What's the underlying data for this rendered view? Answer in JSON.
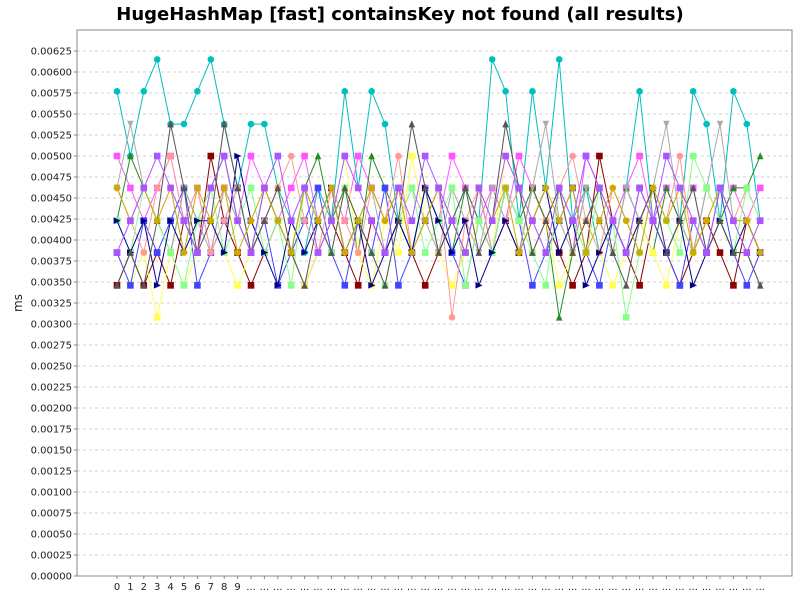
{
  "chart_data": {
    "type": "line",
    "title": "HugeHashMap [fast] containsKey not found (all results)",
    "ylabel": "ms",
    "xlabel": "",
    "ylim": [
      0,
      0.0065
    ],
    "grid": true,
    "legend": "none",
    "y_ticks": [
      "0.00000",
      "0.00025",
      "0.00050",
      "0.00075",
      "0.00100",
      "0.00125",
      "0.00150",
      "0.00175",
      "0.00200",
      "0.00225",
      "0.00250",
      "0.00275",
      "0.00300",
      "0.00325",
      "0.00350",
      "0.00375",
      "0.00400",
      "0.00425",
      "0.00450",
      "0.00475",
      "0.00500",
      "0.00525",
      "0.00550",
      "0.00575",
      "0.00600",
      "0.00625"
    ],
    "x_labels": [
      "0",
      "1",
      "2",
      "3",
      "4",
      "5",
      "6",
      "7",
      "8",
      "9",
      "...",
      "...",
      "...",
      "...",
      "...",
      "...",
      "...",
      "...",
      "...",
      "...",
      "...",
      "...",
      "...",
      "...",
      "...",
      "...",
      "...",
      "...",
      "...",
      "...",
      "...",
      "...",
      "...",
      "...",
      "...",
      "...",
      "...",
      "...",
      "...",
      "...",
      "...",
      "...",
      "...",
      "...",
      "...",
      "...",
      "...",
      "...",
      "..."
    ],
    "series": [
      {
        "color": "#00bfbf",
        "marker": "circle",
        "values": [
          0.00577,
          0.005,
          0.00577,
          0.00615,
          0.00538,
          0.00538,
          0.00577,
          0.00615,
          0.00538,
          0.00462,
          0.00538,
          0.00538,
          0.00462,
          0.00423,
          0.00385,
          0.00462,
          0.00423,
          0.00577,
          0.00462,
          0.00577,
          0.00538,
          0.00423,
          0.00385,
          0.00462,
          0.00385,
          0.00423,
          0.00462,
          0.00423,
          0.00615,
          0.00577,
          0.00423,
          0.00577,
          0.00462,
          0.00615,
          0.00423,
          0.00462,
          0.00385,
          0.00423,
          0.00462,
          0.00577,
          0.00423,
          0.00462,
          0.00423,
          0.00577,
          0.00538,
          0.00423,
          0.00577,
          0.00538,
          0.00423
        ]
      },
      {
        "color": "#ff55ff",
        "marker": "square",
        "values": [
          0.005,
          0.00462,
          0.00423,
          0.00462,
          0.005,
          0.00423,
          0.00462,
          0.00385,
          0.00462,
          0.00423,
          0.005,
          0.00462,
          0.00423,
          0.00462,
          0.005,
          0.00423,
          0.00462,
          0.00423,
          0.005,
          0.00462,
          0.00423,
          0.00462,
          0.00385,
          0.00462,
          0.00423,
          0.005,
          0.00462,
          0.00423,
          0.00462,
          0.00423,
          0.005,
          0.00462,
          0.00423,
          0.00462,
          0.00385,
          0.005,
          0.00462,
          0.00423,
          0.00462,
          0.005,
          0.00423,
          0.00462,
          0.00423,
          0.00462,
          0.00385,
          0.00423,
          0.00462,
          0.00423,
          0.00462
        ]
      },
      {
        "color": "#8b0000",
        "marker": "square",
        "values": [
          0.00346,
          0.00385,
          0.00346,
          0.00385,
          0.00346,
          0.00423,
          0.00385,
          0.005,
          0.00423,
          0.00385,
          0.00346,
          0.00385,
          0.00423,
          0.00385,
          0.00346,
          0.00385,
          0.00423,
          0.00385,
          0.00346,
          0.00423,
          0.00385,
          0.00423,
          0.00385,
          0.00346,
          0.00385,
          0.00423,
          0.00385,
          0.00462,
          0.00385,
          0.00423,
          0.00385,
          0.00462,
          0.00423,
          0.00385,
          0.00346,
          0.00385,
          0.005,
          0.00423,
          0.00385,
          0.00346,
          0.00423,
          0.00385,
          0.00346,
          0.00385,
          0.00423,
          0.00385,
          0.00346,
          0.00423,
          0.00385
        ]
      },
      {
        "color": "#228b22",
        "marker": "triangle-up",
        "values": [
          0.00423,
          0.005,
          0.00462,
          0.00423,
          0.00385,
          0.00462,
          0.00423,
          0.00462,
          0.005,
          0.00423,
          0.00385,
          0.00462,
          0.00423,
          0.00385,
          0.00462,
          0.005,
          0.00423,
          0.00462,
          0.00385,
          0.005,
          0.00462,
          0.00423,
          0.00385,
          0.00462,
          0.00423,
          0.00385,
          0.00462,
          0.00423,
          0.00385,
          0.00462,
          0.00423,
          0.00462,
          0.00423,
          0.00308,
          0.00385,
          0.00462,
          0.00423,
          0.00385,
          0.00462,
          0.00423,
          0.00385,
          0.00462,
          0.00423,
          0.00385,
          0.00462,
          0.00423,
          0.00462,
          0.00462,
          0.005
        ]
      },
      {
        "color": "#ffff55",
        "marker": "square",
        "values": [
          0.00385,
          0.00346,
          0.00385,
          0.00308,
          0.00385,
          0.00346,
          0.00385,
          0.00423,
          0.00385,
          0.00346,
          0.00385,
          0.00423,
          0.00462,
          0.00385,
          0.00346,
          0.00385,
          0.00423,
          0.005,
          0.00385,
          0.00346,
          0.00423,
          0.00385,
          0.005,
          0.00423,
          0.00385,
          0.00346,
          0.00385,
          0.00423,
          0.00385,
          0.005,
          0.00462,
          0.00385,
          0.00423,
          0.00346,
          0.00385,
          0.00423,
          0.00385,
          0.00346,
          0.00385,
          0.00423,
          0.00385,
          0.00346,
          0.00423,
          0.00385,
          0.00462,
          0.00423,
          0.00385,
          0.00423,
          0.00385
        ]
      },
      {
        "color": "#4444ff",
        "marker": "square",
        "values": [
          0.00385,
          0.00346,
          0.00423,
          0.00385,
          0.00423,
          0.00462,
          0.00346,
          0.00385,
          0.00423,
          0.00462,
          0.00385,
          0.00423,
          0.00346,
          0.00385,
          0.00423,
          0.00462,
          0.00385,
          0.00346,
          0.00423,
          0.00385,
          0.00462,
          0.00346,
          0.00385,
          0.00423,
          0.00462,
          0.00385,
          0.00346,
          0.00423,
          0.00385,
          0.00462,
          0.00423,
          0.00346,
          0.00385,
          0.00423,
          0.00462,
          0.00385,
          0.00346,
          0.00423,
          0.00385,
          0.00462,
          0.00423,
          0.00385,
          0.00346,
          0.00423,
          0.00385,
          0.00462,
          0.00385,
          0.00346,
          0.00385
        ]
      },
      {
        "color": "#aaaaaa",
        "marker": "triangle-down",
        "values": [
          0.00462,
          0.00538,
          0.00462,
          0.00423,
          0.00385,
          0.00462,
          0.00423,
          0.00385,
          0.00462,
          0.00423,
          0.00385,
          0.00462,
          0.00423,
          0.00385,
          0.00462,
          0.00423,
          0.00462,
          0.00385,
          0.00423,
          0.00462,
          0.00385,
          0.00423,
          0.00462,
          0.00423,
          0.00385,
          0.00462,
          0.00423,
          0.00385,
          0.00462,
          0.00423,
          0.00385,
          0.00462,
          0.00538,
          0.00423,
          0.00385,
          0.00462,
          0.00423,
          0.00385,
          0.00462,
          0.00423,
          0.00462,
          0.00538,
          0.00423,
          0.00385,
          0.00462,
          0.00538,
          0.00423,
          0.00385,
          0.00346
        ]
      },
      {
        "color": "#ff9999",
        "marker": "circle",
        "values": [
          0.00462,
          0.00423,
          0.00385,
          0.00462,
          0.005,
          0.00423,
          0.00462,
          0.00385,
          0.00423,
          0.00462,
          0.00385,
          0.00423,
          0.00462,
          0.005,
          0.00423,
          0.00385,
          0.00462,
          0.00423,
          0.00385,
          0.00462,
          0.00423,
          0.005,
          0.00385,
          0.00423,
          0.00462,
          0.00308,
          0.00423,
          0.00462,
          0.00385,
          0.00423,
          0.00462,
          0.00385,
          0.00423,
          0.00462,
          0.005,
          0.00423,
          0.00385,
          0.00462,
          0.00423,
          0.00385,
          0.00462,
          0.00423,
          0.005,
          0.00385,
          0.00423,
          0.00462,
          0.00423,
          0.00462,
          0.00423
        ]
      },
      {
        "color": "#88ff88",
        "marker": "square",
        "values": [
          0.00423,
          0.00385,
          0.00462,
          0.00423,
          0.00385,
          0.00346,
          0.00423,
          0.00462,
          0.00385,
          0.00423,
          0.00462,
          0.00385,
          0.00423,
          0.00346,
          0.00462,
          0.00423,
          0.00385,
          0.00462,
          0.00423,
          0.00385,
          0.00346,
          0.00423,
          0.00462,
          0.00385,
          0.00423,
          0.00462,
          0.00346,
          0.00423,
          0.00385,
          0.00462,
          0.00423,
          0.00385,
          0.00346,
          0.00462,
          0.00423,
          0.00385,
          0.00462,
          0.00423,
          0.00308,
          0.00385,
          0.00462,
          0.00423,
          0.00385,
          0.005,
          0.00462,
          0.00423,
          0.00385,
          0.00462,
          0.00423
        ]
      },
      {
        "color": "#000088",
        "marker": "triangle-right",
        "values": [
          0.00423,
          0.00385,
          0.00423,
          0.00346,
          0.00423,
          0.00385,
          0.00423,
          0.00423,
          0.00385,
          0.005,
          0.00423,
          0.00385,
          0.00346,
          0.00423,
          0.00385,
          0.00423,
          0.00462,
          0.00385,
          0.00423,
          0.00346,
          0.00385,
          0.00423,
          0.00385,
          0.00462,
          0.00423,
          0.00385,
          0.00423,
          0.00346,
          0.00385,
          0.00423,
          0.00385,
          0.00423,
          0.00462,
          0.00385,
          0.00423,
          0.00346,
          0.00385,
          0.00423,
          0.00385,
          0.00423,
          0.00462,
          0.00385,
          0.00423,
          0.00346,
          0.00385,
          0.00423,
          0.00385,
          0.00423,
          0.00385
        ]
      },
      {
        "color": "#555555",
        "marker": "triangle-up",
        "values": [
          0.00346,
          0.00385,
          0.00346,
          0.00423,
          0.00538,
          0.00462,
          0.00385,
          0.00423,
          0.00538,
          0.00462,
          0.00385,
          0.00423,
          0.00462,
          0.00385,
          0.00346,
          0.00423,
          0.00385,
          0.00462,
          0.00423,
          0.00385,
          0.00346,
          0.00423,
          0.00538,
          0.00462,
          0.00385,
          0.00423,
          0.00462,
          0.00385,
          0.00423,
          0.00538,
          0.00462,
          0.00385,
          0.00423,
          0.00462,
          0.00385,
          0.00423,
          0.00462,
          0.00385,
          0.00346,
          0.00423,
          0.00462,
          0.00385,
          0.00423,
          0.00462,
          0.00385,
          0.00423,
          0.00385,
          0.00385,
          0.00346
        ]
      },
      {
        "color": "#ccaa00",
        "marker": "circle",
        "values": [
          0.00462,
          0.00423,
          0.00462,
          0.00423,
          0.00462,
          0.00385,
          0.00462,
          0.00423,
          0.00462,
          0.00385,
          0.00423,
          0.00462,
          0.00423,
          0.00385,
          0.00462,
          0.00423,
          0.00462,
          0.00385,
          0.00423,
          0.00462,
          0.00423,
          0.00462,
          0.00385,
          0.00423,
          0.00462,
          0.00423,
          0.00385,
          0.00462,
          0.00423,
          0.00462,
          0.00385,
          0.00423,
          0.00462,
          0.00423,
          0.00462,
          0.00385,
          0.00423,
          0.00462,
          0.00423,
          0.00385,
          0.00462,
          0.00423,
          0.00462,
          0.00385,
          0.00423,
          0.00462,
          0.00423,
          0.00423,
          0.00385
        ]
      },
      {
        "color": "#aa55ff",
        "marker": "square",
        "values": [
          0.00385,
          0.00423,
          0.00462,
          0.005,
          0.00462,
          0.00423,
          0.00385,
          0.00462,
          0.005,
          0.00423,
          0.00385,
          0.00462,
          0.005,
          0.00423,
          0.00462,
          0.00385,
          0.00423,
          0.005,
          0.00462,
          0.00423,
          0.00385,
          0.00462,
          0.00423,
          0.005,
          0.00462,
          0.00423,
          0.00385,
          0.00462,
          0.00423,
          0.005,
          0.00462,
          0.00423,
          0.00385,
          0.00462,
          0.00423,
          0.005,
          0.00462,
          0.00423,
          0.00385,
          0.00462,
          0.00423,
          0.005,
          0.00462,
          0.00423,
          0.00385,
          0.00462,
          0.00423,
          0.00385,
          0.00423
        ]
      }
    ]
  }
}
